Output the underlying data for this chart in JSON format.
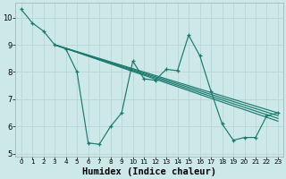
{
  "bg_color": "#cce8e8",
  "grid_color": "#b8d4d4",
  "line_color": "#1a7a6e",
  "xlabel": "Humidex (Indice chaleur)",
  "xlim": [
    -0.5,
    23.5
  ],
  "ylim": [
    4.9,
    10.55
  ],
  "yticks": [
    5,
    6,
    7,
    8,
    9,
    10
  ],
  "xtick_pos": [
    0,
    1,
    2,
    3,
    4,
    5,
    6,
    7,
    8,
    9,
    10,
    11,
    12,
    13,
    14,
    15,
    16,
    17,
    18,
    19,
    20,
    21,
    22,
    23
  ],
  "xtick_labels": [
    "0",
    "1",
    "2",
    "3",
    "4",
    "5",
    "6",
    "7",
    "8",
    "9",
    "10",
    "11",
    "12",
    "13",
    "14",
    "15",
    "16",
    "17",
    "18",
    "19",
    "20",
    "21",
    "22",
    "23"
  ],
  "main_x": [
    0,
    1,
    2,
    3,
    4,
    5,
    6,
    7,
    8,
    9,
    10,
    11,
    12,
    13,
    14,
    15,
    16,
    17,
    18,
    19,
    20,
    21,
    22,
    23
  ],
  "main_y": [
    10.3,
    9.8,
    9.5,
    9.0,
    8.85,
    8.0,
    5.4,
    5.35,
    6.0,
    6.5,
    8.4,
    7.75,
    7.7,
    8.1,
    8.05,
    9.35,
    8.6,
    7.3,
    6.1,
    5.5,
    5.6,
    5.6,
    6.4,
    6.5
  ],
  "diag_lines": [
    [
      [
        3,
        9.0
      ],
      [
        23,
        6.5
      ]
    ],
    [
      [
        3,
        9.0
      ],
      [
        23,
        6.4
      ]
    ],
    [
      [
        3,
        9.0
      ],
      [
        23,
        6.3
      ]
    ],
    [
      [
        3,
        9.0
      ],
      [
        23,
        6.2
      ]
    ]
  ]
}
